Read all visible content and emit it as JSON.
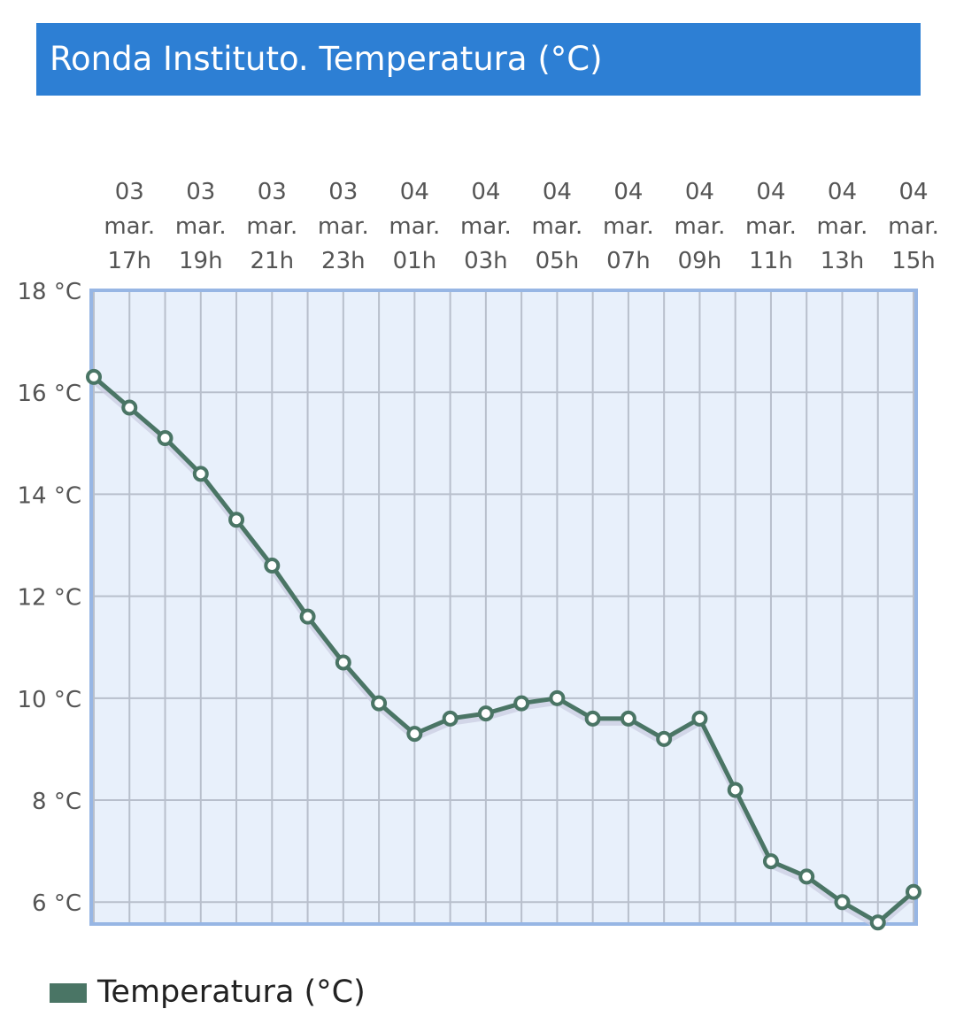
{
  "chart_data": {
    "type": "line",
    "title": "Ronda Instituto. Temperatura (°C)",
    "categories": [
      null,
      "03 mar. 17h",
      null,
      "03 mar. 19h",
      null,
      "03 mar. 21h",
      null,
      "03 mar. 23h",
      null,
      "04 mar. 01h",
      null,
      "04 mar. 03h",
      null,
      "04 mar. 05h",
      null,
      "04 mar. 07h",
      null,
      "04 mar. 09h",
      null,
      "04 mar. 11h",
      null,
      "04 mar. 13h",
      null,
      "04 mar. 15h"
    ],
    "series": [
      {
        "name": "Temperatura (°C)",
        "color": "#4a7565",
        "values": [
          16.3,
          15.7,
          15.1,
          14.4,
          13.5,
          12.6,
          11.6,
          10.7,
          9.9,
          9.3,
          9.6,
          9.7,
          9.9,
          10.0,
          9.6,
          9.6,
          9.2,
          9.6,
          8.2,
          6.8,
          6.5,
          6.0,
          5.6,
          6.2
        ]
      }
    ],
    "ylim": [
      5.57,
      18
    ],
    "yticks": [
      {
        "value": 6,
        "label": "6 °C"
      },
      {
        "value": 8,
        "label": "8 °C"
      },
      {
        "value": 10,
        "label": "10 °C"
      },
      {
        "value": 12,
        "label": "12 °C"
      },
      {
        "value": 14,
        "label": "14 °C"
      },
      {
        "value": 16,
        "label": "16 °C"
      },
      {
        "value": 18,
        "label": "18 °C"
      }
    ],
    "grid": true
  }
}
